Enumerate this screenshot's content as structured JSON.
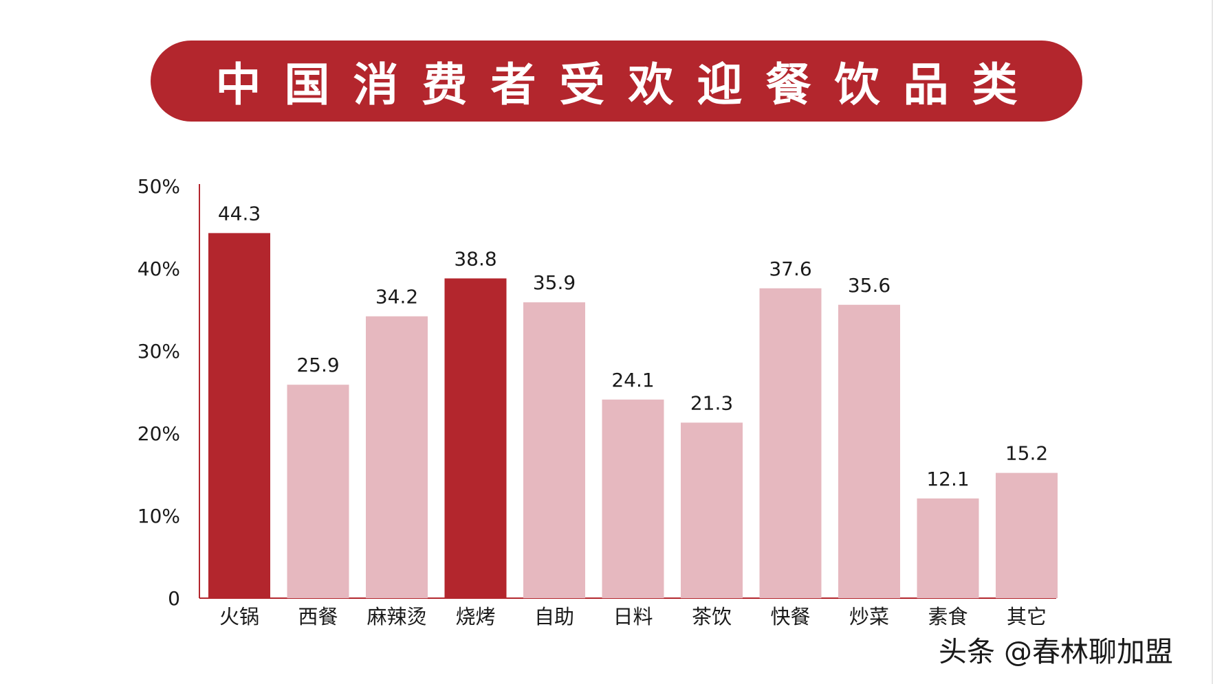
{
  "title": "中国消费者受欢迎餐饮品类",
  "watermark": "头条 @春林聊加盟",
  "colors": {
    "accent": "#b3262d",
    "light": "#e6b8bf",
    "axis": "#b3262d",
    "text": "#1a1a1a"
  },
  "chart_data": {
    "type": "bar",
    "title": "中国消费者受欢迎餐饮品类",
    "xlabel": "",
    "ylabel": "",
    "ylim": [
      0,
      50
    ],
    "yticks": [
      {
        "value": 0,
        "label": "0"
      },
      {
        "value": 10,
        "label": "10%"
      },
      {
        "value": 20,
        "label": "20%"
      },
      {
        "value": 30,
        "label": "30%"
      },
      {
        "value": 40,
        "label": "40%"
      },
      {
        "value": 50,
        "label": "50%"
      }
    ],
    "categories": [
      "火锅",
      "西餐",
      "麻辣烫",
      "烧烤",
      "自助",
      "日料",
      "茶饮",
      "快餐",
      "炒菜",
      "素食",
      "其它"
    ],
    "values": [
      44.3,
      25.9,
      34.2,
      38.8,
      35.9,
      24.1,
      21.3,
      37.6,
      35.6,
      12.1,
      15.2
    ],
    "value_labels": [
      "44.3",
      "25.9",
      "34.2",
      "38.8",
      "35.9",
      "24.1",
      "21.3",
      "37.6",
      "35.6",
      "12.1",
      "15.2"
    ],
    "highlighted": [
      true,
      false,
      false,
      true,
      false,
      false,
      false,
      false,
      false,
      false,
      false
    ],
    "grid": false,
    "legend": "none"
  }
}
